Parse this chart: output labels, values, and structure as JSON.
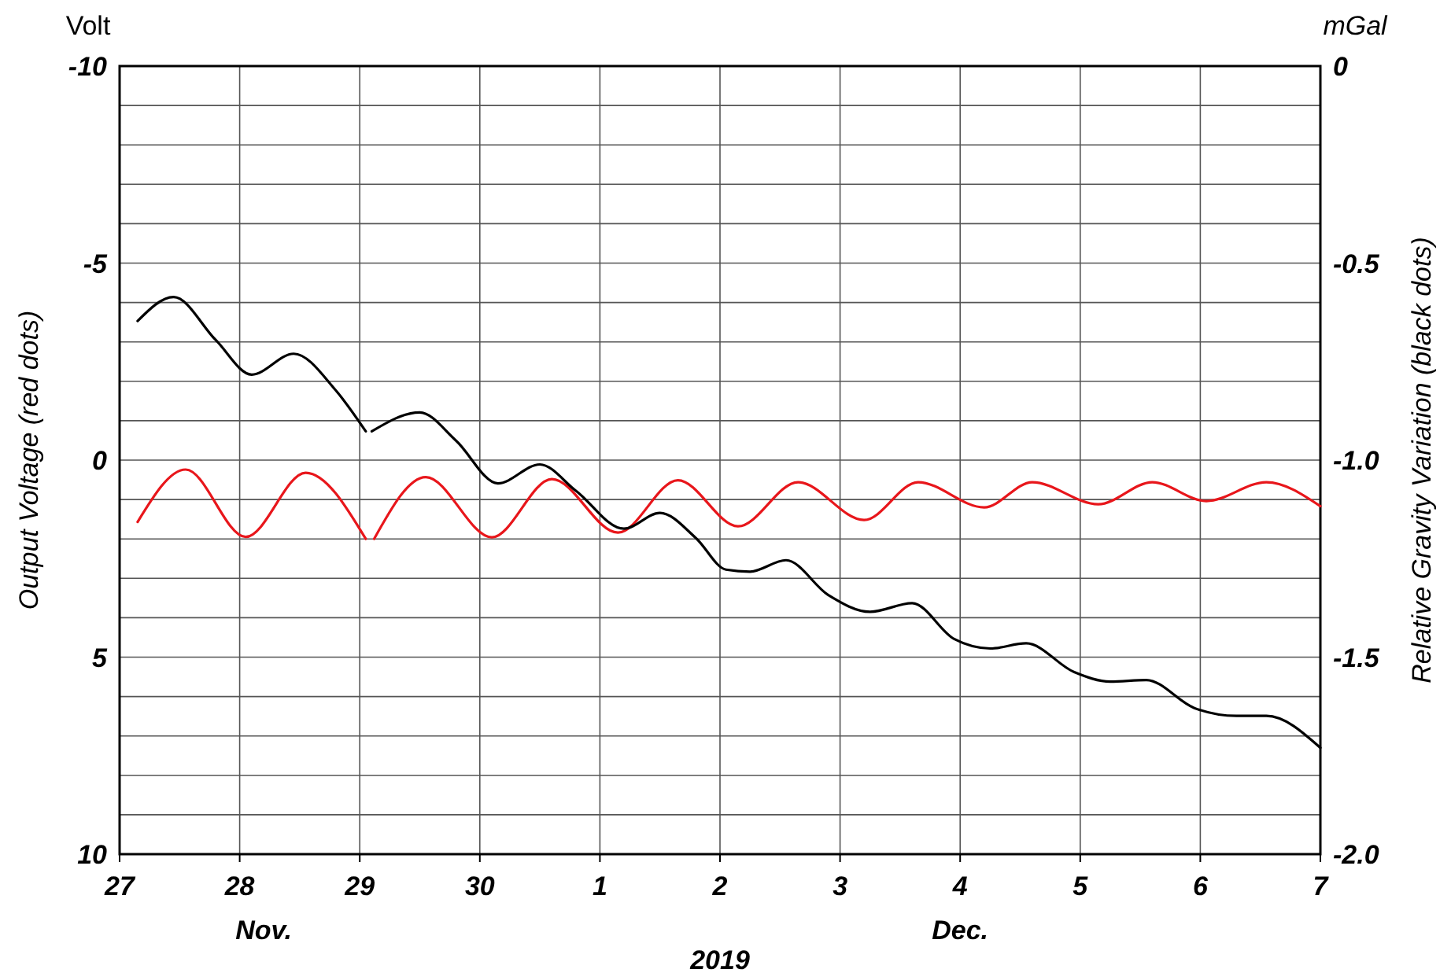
{
  "chart_data": {
    "type": "line",
    "xlabel": null,
    "ylabel": "Output Voltage (red dots)",
    "y2label": "Relative Gravity Variation (black dots)",
    "annotations": [
      "Volt",
      "mGal",
      "Nov.",
      "Dec.",
      "2019"
    ],
    "xlim": [
      "2019-11-27",
      "2019-12-07"
    ],
    "xticks": [
      {
        "value": "2019-11-27",
        "label": "27"
      },
      {
        "value": "2019-11-28",
        "label": "28"
      },
      {
        "value": "2019-11-29",
        "label": "29"
      },
      {
        "value": "2019-11-30",
        "label": "30"
      },
      {
        "value": "2019-12-01",
        "label": "1"
      },
      {
        "value": "2019-12-02",
        "label": "2"
      },
      {
        "value": "2019-12-03",
        "label": "3"
      },
      {
        "value": "2019-12-04",
        "label": "4"
      },
      {
        "value": "2019-12-05",
        "label": "5"
      },
      {
        "value": "2019-12-06",
        "label": "6"
      },
      {
        "value": "2019-12-07",
        "label": "7"
      }
    ],
    "ylim": [
      10,
      -10
    ],
    "yticks": [
      -10,
      {
        "value": -9,
        "label": null
      },
      {
        "value": -8,
        "label": null
      },
      {
        "value": -7,
        "label": null
      },
      {
        "value": -6,
        "label": null
      },
      -5,
      {
        "value": -4,
        "label": null
      },
      {
        "value": -3,
        "label": null
      },
      {
        "value": -2,
        "label": null
      },
      {
        "value": -1,
        "label": null
      },
      0,
      {
        "value": 1,
        "label": null
      },
      {
        "value": 2,
        "label": null
      },
      {
        "value": 3,
        "label": null
      },
      {
        "value": 4,
        "label": null
      },
      5,
      {
        "value": 6,
        "label": null
      },
      {
        "value": 7,
        "label": null
      },
      {
        "value": 8,
        "label": null
      },
      {
        "value": 9,
        "label": null
      },
      10
    ],
    "y2lim": [
      -2.0,
      0
    ],
    "y2ticks": [
      0,
      {
        "value": -0.5,
        "label": "-0.5"
      },
      {
        "value": -1.0,
        "label": "-1.0"
      },
      {
        "value": -1.5,
        "label": "-1.5"
      },
      {
        "value": -2.0,
        "label": "-2.0"
      }
    ],
    "grid": true,
    "line_style": "solid",
    "marker": "none",
    "series": [
      {
        "color": "#e8161b",
        "x": [
          "2019-11-27T03:36",
          "2019-11-27T13:12",
          "2019-11-28T01:12",
          "2019-11-28T13:12",
          "2019-11-29T01:12",
          "2019-11-29T02:00",
          "2019-11-29T02:52",
          "2019-11-29T13:12",
          "2019-11-30T02:24",
          "2019-11-30T14:24",
          "2019-12-01T03:36",
          "2019-12-01T15:36",
          "2019-12-02T03:36",
          "2019-12-02T15:36",
          "2019-12-03T04:48",
          "2019-12-03T15:36",
          "2019-12-04T04:48",
          "2019-12-04T14:24",
          "2019-12-05T03:36",
          "2019-12-05T14:24",
          "2019-12-06T01:12",
          "2019-12-06T13:12",
          "2019-12-07T00:00"
        ],
        "values": [
          1.57,
          0.24,
          1.95,
          0.32,
          2.0,
          null,
          2.0,
          0.43,
          1.96,
          0.48,
          1.84,
          0.51,
          1.68,
          0.56,
          1.52,
          0.56,
          1.2,
          0.56,
          1.12,
          0.56,
          1.04,
          0.56,
          1.17
        ]
      },
      {
        "color": "#000000",
        "axis": "y2",
        "x": [
          "2019-11-27T03:36",
          "2019-11-27T10:48",
          "2019-11-27T19:12",
          "2019-11-28T02:24",
          "2019-11-28T10:48",
          "2019-11-28T19:12",
          "2019-11-29T01:12",
          "2019-11-29T01:50",
          "2019-11-29T02:24",
          "2019-11-29T12:00",
          "2019-11-29T19:12",
          "2019-11-30T03:36",
          "2019-11-30T12:00",
          "2019-11-30T19:12",
          "2019-12-01T04:48",
          "2019-12-01T12:00",
          "2019-12-01T19:12",
          "2019-12-02T01:12",
          "2019-12-02T06:00",
          "2019-12-02T13:12",
          "2019-12-02T21:36",
          "2019-12-03T06:00",
          "2019-12-03T14:24",
          "2019-12-03T22:48",
          "2019-12-04T06:00",
          "2019-12-04T13:12",
          "2019-12-04T22:48",
          "2019-12-05T06:00",
          "2019-12-05T13:12",
          "2019-12-05T22:48",
          "2019-12-06T07:12",
          "2019-12-06T13:12",
          "2019-12-07T00:00"
        ],
        "values": [
          -0.647,
          -0.586,
          -0.695,
          -0.783,
          -0.73,
          -0.823,
          -0.927,
          null,
          -0.927,
          -0.879,
          -0.95,
          -1.059,
          -1.011,
          -1.078,
          -1.174,
          -1.134,
          -1.198,
          -1.278,
          -1.283,
          -1.254,
          -1.342,
          -1.385,
          -1.363,
          -1.454,
          -1.478,
          -1.465,
          -1.538,
          -1.562,
          -1.558,
          -1.629,
          -1.649,
          -1.649,
          -1.73
        ]
      }
    ]
  }
}
